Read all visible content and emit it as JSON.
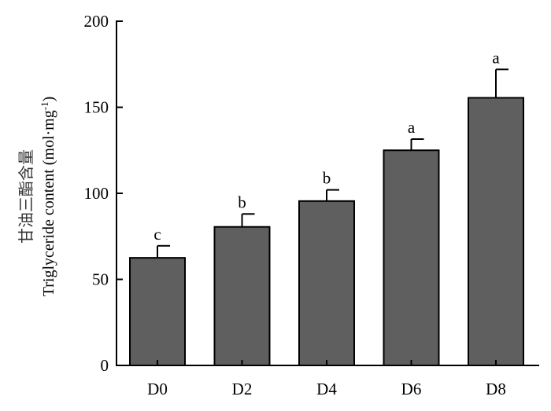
{
  "chart_data": {
    "type": "bar",
    "categories": [
      "D0",
      "D2",
      "D4",
      "D6",
      "D8"
    ],
    "values": [
      62.5,
      80.5,
      95.5,
      125.0,
      155.5
    ],
    "error": [
      7,
      7.5,
      6.5,
      6.5,
      16.5
    ],
    "significance": [
      "c",
      "b",
      "b",
      "a",
      "a"
    ],
    "ylabel_cn": "甘油三酯含量",
    "ylabel": "Triglyceride content (mol·mg",
    "ylabel_sup": "-1",
    "ylabel_close": ")",
    "ylim": [
      0,
      200
    ],
    "yticks": [
      0,
      50,
      100,
      150,
      200
    ],
    "bar_color": "#5f5f5f",
    "grid": false
  }
}
